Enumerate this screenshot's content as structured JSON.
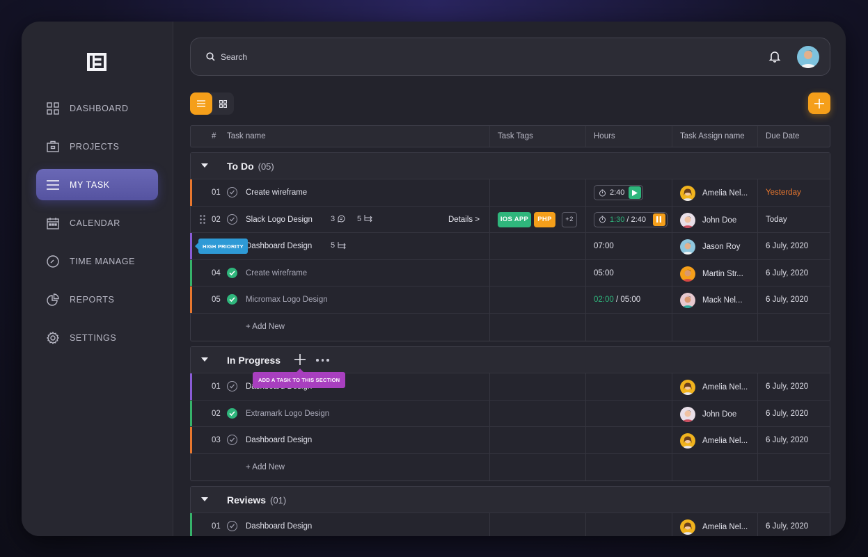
{
  "nav": {
    "items": [
      {
        "label": "DASHBOARD",
        "icon": "dashboard-icon"
      },
      {
        "label": "PROJECTS",
        "icon": "briefcase-icon"
      },
      {
        "label": "MY TASK",
        "icon": "menu-icon",
        "active": true
      },
      {
        "label": "CALENDAR",
        "icon": "calendar-icon"
      },
      {
        "label": "TIME MANAGE",
        "icon": "clock-icon"
      },
      {
        "label": "REPORTS",
        "icon": "pie-chart-icon"
      },
      {
        "label": "SETTINGS",
        "icon": "gear-icon"
      }
    ]
  },
  "search": {
    "placeholder": "Search"
  },
  "table": {
    "headers": {
      "num": "#",
      "name": "Task name",
      "tags": "Task Tags",
      "hours": "Hours",
      "assign": "Task Assign name",
      "due": "Due Date"
    }
  },
  "sections": {
    "todo": {
      "title": "To Do",
      "count": "(05)",
      "add_new": "+ Add New",
      "rows": [
        {
          "num": "01",
          "name": "Create wireframe",
          "timer": "2:40",
          "assignee": "Amelia Nel...",
          "due": "Yesterday",
          "accent": "#e8772e"
        },
        {
          "num": "02",
          "name": "Slack Logo Design",
          "comments": "3",
          "subtasks": "5",
          "details": "Details >",
          "tags": [
            "IOS APP",
            "PHP",
            "+2"
          ],
          "timer_done": "1:30",
          "timer_total": "/ 2:40",
          "assignee": "John Doe",
          "due": "Today",
          "accent": "#3b3b46"
        },
        {
          "num": "03",
          "name": "Dashboard Design",
          "subtasks": "5",
          "tooltip": "HIGH PRIORITY",
          "hours": "07:00",
          "assignee": "Jason Roy",
          "due": "6 July, 2020",
          "accent": "#8a5cd6"
        },
        {
          "num": "04",
          "name": "Create wireframe",
          "hours": "05:00",
          "assignee": "Martin Str...",
          "due": "6 July, 2020",
          "accent": "#36b26a"
        },
        {
          "num": "05",
          "name": "Micromax Logo Design",
          "hours_done": "02:00",
          "hours_total": "/ 05:00",
          "assignee": "Mack Nel...",
          "due": "6 July, 2020",
          "accent": "#e8772e"
        }
      ]
    },
    "inprogress": {
      "title": "In Progress",
      "tooltip": "ADD A TASK TO THIS SECTION",
      "add_new": "+ Add New",
      "rows": [
        {
          "num": "01",
          "name": "Dashboard Design",
          "assignee": "Amelia Nel...",
          "due": "6 July, 2020",
          "accent": "#8a5cd6"
        },
        {
          "num": "02",
          "name": "Extramark Logo Design",
          "assignee": "John Doe",
          "due": "6 July, 2020",
          "accent": "#36b26a"
        },
        {
          "num": "03",
          "name": "Dashboard Design",
          "assignee": "Amelia Nel...",
          "due": "6 July, 2020",
          "accent": "#e8772e"
        }
      ]
    },
    "reviews": {
      "title": "Reviews",
      "count": "(01)",
      "rows": [
        {
          "num": "01",
          "name": "Dashboard Design",
          "assignee": "Amelia Nel...",
          "due": "6 July, 2020",
          "accent": "#36b26a"
        }
      ]
    }
  },
  "colors": {
    "accent_orange": "#f59f1a",
    "active_nav": "#5f5dab",
    "done_green": "#2fb67c",
    "overdue": "#e8772e"
  }
}
